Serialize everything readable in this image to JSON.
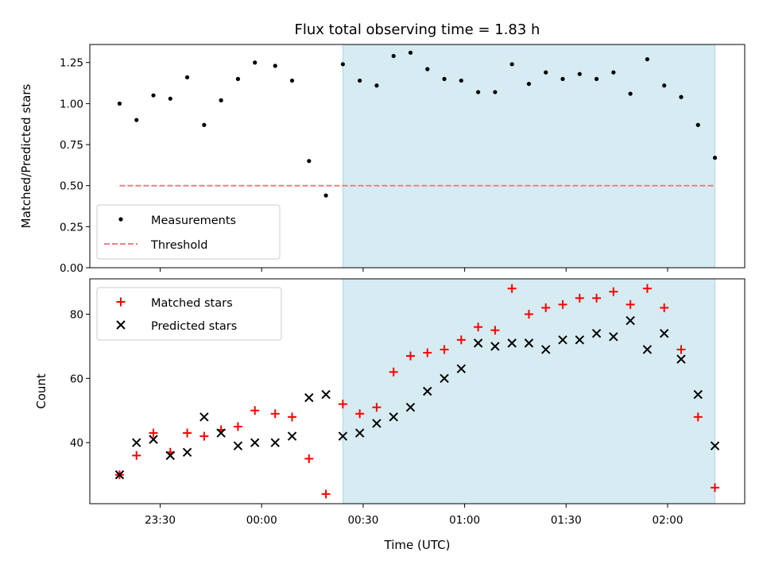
{
  "chart_data": [
    {
      "type": "scatter",
      "title": "Flux total observing time = 1.83 h",
      "xlabel": "",
      "ylabel": "Matched/Predicted stars",
      "ylim": [
        0,
        1.36
      ],
      "yticks": [
        "0.00",
        "0.25",
        "0.50",
        "0.75",
        "1.00",
        "1.25"
      ],
      "grid": false,
      "legend_position": "bottom-left",
      "shaded_interval": {
        "start": "00:24",
        "end": "02:14",
        "color": "#add8e6"
      },
      "series": [
        {
          "name": "Measurements",
          "marker": "dot",
          "color": "#000000",
          "x": [
            "23:18",
            "23:23",
            "23:28",
            "23:33",
            "23:38",
            "23:43",
            "23:48",
            "23:53",
            "23:58",
            "00:04",
            "00:09",
            "00:14",
            "00:19",
            "00:24",
            "00:29",
            "00:34",
            "00:39",
            "00:44",
            "00:49",
            "00:54",
            "00:59",
            "01:04",
            "01:09",
            "01:14",
            "01:19",
            "01:24",
            "01:29",
            "01:34",
            "01:39",
            "01:44",
            "01:49",
            "01:54",
            "01:59",
            "02:04",
            "02:09",
            "02:14"
          ],
          "y": [
            1.0,
            0.9,
            1.05,
            1.03,
            1.16,
            0.87,
            1.02,
            1.15,
            1.25,
            1.23,
            1.14,
            0.65,
            0.44,
            1.24,
            1.14,
            1.11,
            1.29,
            1.31,
            1.21,
            1.15,
            1.14,
            1.07,
            1.07,
            1.24,
            1.12,
            1.19,
            1.15,
            1.18,
            1.15,
            1.19,
            1.06,
            1.27,
            1.11,
            1.04,
            0.87,
            0.67
          ]
        },
        {
          "name": "Threshold",
          "marker": "dashed-line",
          "color": "#f08080",
          "x": [
            "23:18",
            "02:14"
          ],
          "y": [
            0.5,
            0.5
          ]
        }
      ]
    },
    {
      "type": "scatter",
      "title": "",
      "xlabel": "Time (UTC)",
      "ylabel": "Count",
      "ylim": [
        21,
        91
      ],
      "yticks": [
        "40",
        "60",
        "80"
      ],
      "xticks": [
        "23:30",
        "00:00",
        "00:30",
        "01:00",
        "01:30",
        "02:00"
      ],
      "grid": false,
      "legend_position": "top-left",
      "shaded_interval": {
        "start": "00:24",
        "end": "02:14",
        "color": "#add8e6"
      },
      "series": [
        {
          "name": "Matched stars",
          "marker": "plus",
          "color": "#ff0000",
          "x": [
            "23:18",
            "23:23",
            "23:28",
            "23:33",
            "23:38",
            "23:43",
            "23:48",
            "23:53",
            "23:58",
            "00:04",
            "00:09",
            "00:14",
            "00:19",
            "00:24",
            "00:29",
            "00:34",
            "00:39",
            "00:44",
            "00:49",
            "00:54",
            "00:59",
            "01:04",
            "01:09",
            "01:14",
            "01:19",
            "01:24",
            "01:29",
            "01:34",
            "01:39",
            "01:44",
            "01:49",
            "01:54",
            "01:59",
            "02:04",
            "02:09",
            "02:14"
          ],
          "y": [
            30,
            36,
            43,
            37,
            43,
            42,
            44,
            45,
            50,
            49,
            48,
            35,
            24,
            52,
            49,
            51,
            62,
            67,
            68,
            69,
            72,
            76,
            75,
            88,
            80,
            82,
            83,
            85,
            85,
            87,
            83,
            88,
            82,
            69,
            48,
            26
          ]
        },
        {
          "name": "Predicted stars",
          "marker": "x",
          "color": "#000000",
          "x": [
            "23:18",
            "23:23",
            "23:28",
            "23:33",
            "23:38",
            "23:43",
            "23:48",
            "23:53",
            "23:58",
            "00:04",
            "00:09",
            "00:14",
            "00:19",
            "00:24",
            "00:29",
            "00:34",
            "00:39",
            "00:44",
            "00:49",
            "00:54",
            "00:59",
            "01:04",
            "01:09",
            "01:14",
            "01:19",
            "01:24",
            "01:29",
            "01:34",
            "01:39",
            "01:44",
            "01:49",
            "01:54",
            "01:59",
            "02:04",
            "02:09",
            "02:14"
          ],
          "y": [
            30,
            40,
            41,
            36,
            37,
            48,
            43,
            39,
            40,
            40,
            42,
            54,
            55,
            42,
            43,
            46,
            48,
            51,
            56,
            60,
            63,
            71,
            70,
            71,
            71,
            69,
            72,
            72,
            74,
            73,
            78,
            69,
            74,
            66,
            55,
            39
          ]
        }
      ]
    }
  ]
}
